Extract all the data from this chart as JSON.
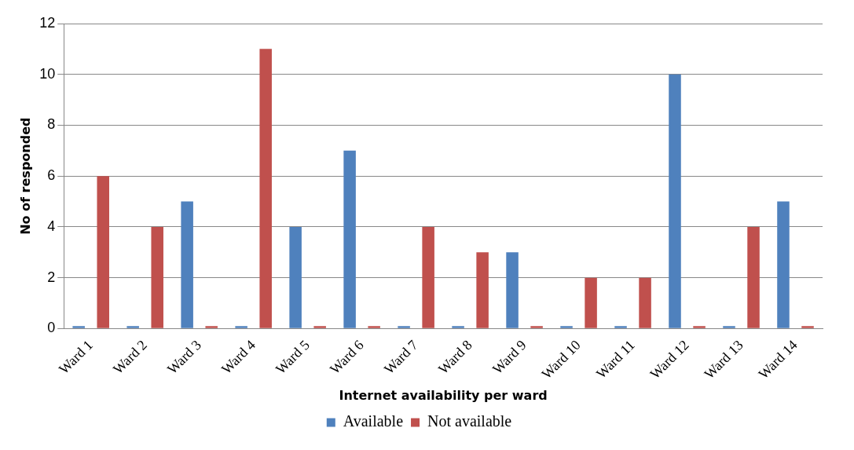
{
  "chart_data": {
    "type": "bar",
    "xlabel": "Internet availability per ward",
    "ylabel": "No of responded",
    "categories": [
      "Ward 1",
      "Ward 2",
      "Ward 3",
      "Ward 4",
      "Ward 5",
      "Ward 6",
      "Ward 7",
      "Ward 8",
      "Ward 9",
      "Ward 10",
      "Ward 11",
      "Ward 12",
      "Ward 13",
      "Ward 14"
    ],
    "series": [
      {
        "name": "Available",
        "color": "#4f81bd",
        "values": [
          0,
          0,
          5,
          0,
          4,
          7,
          0,
          0,
          3,
          0,
          0,
          10,
          0,
          5
        ]
      },
      {
        "name": "Not available",
        "color": "#c0504d",
        "values": [
          6,
          4,
          0,
          11,
          0,
          0,
          4,
          3,
          0,
          2,
          2,
          0,
          4,
          0
        ]
      }
    ],
    "ylim": [
      0,
      12
    ],
    "yticks": [
      0,
      2,
      4,
      6,
      8,
      10,
      12
    ],
    "grid": "y",
    "legend": "bottom"
  }
}
